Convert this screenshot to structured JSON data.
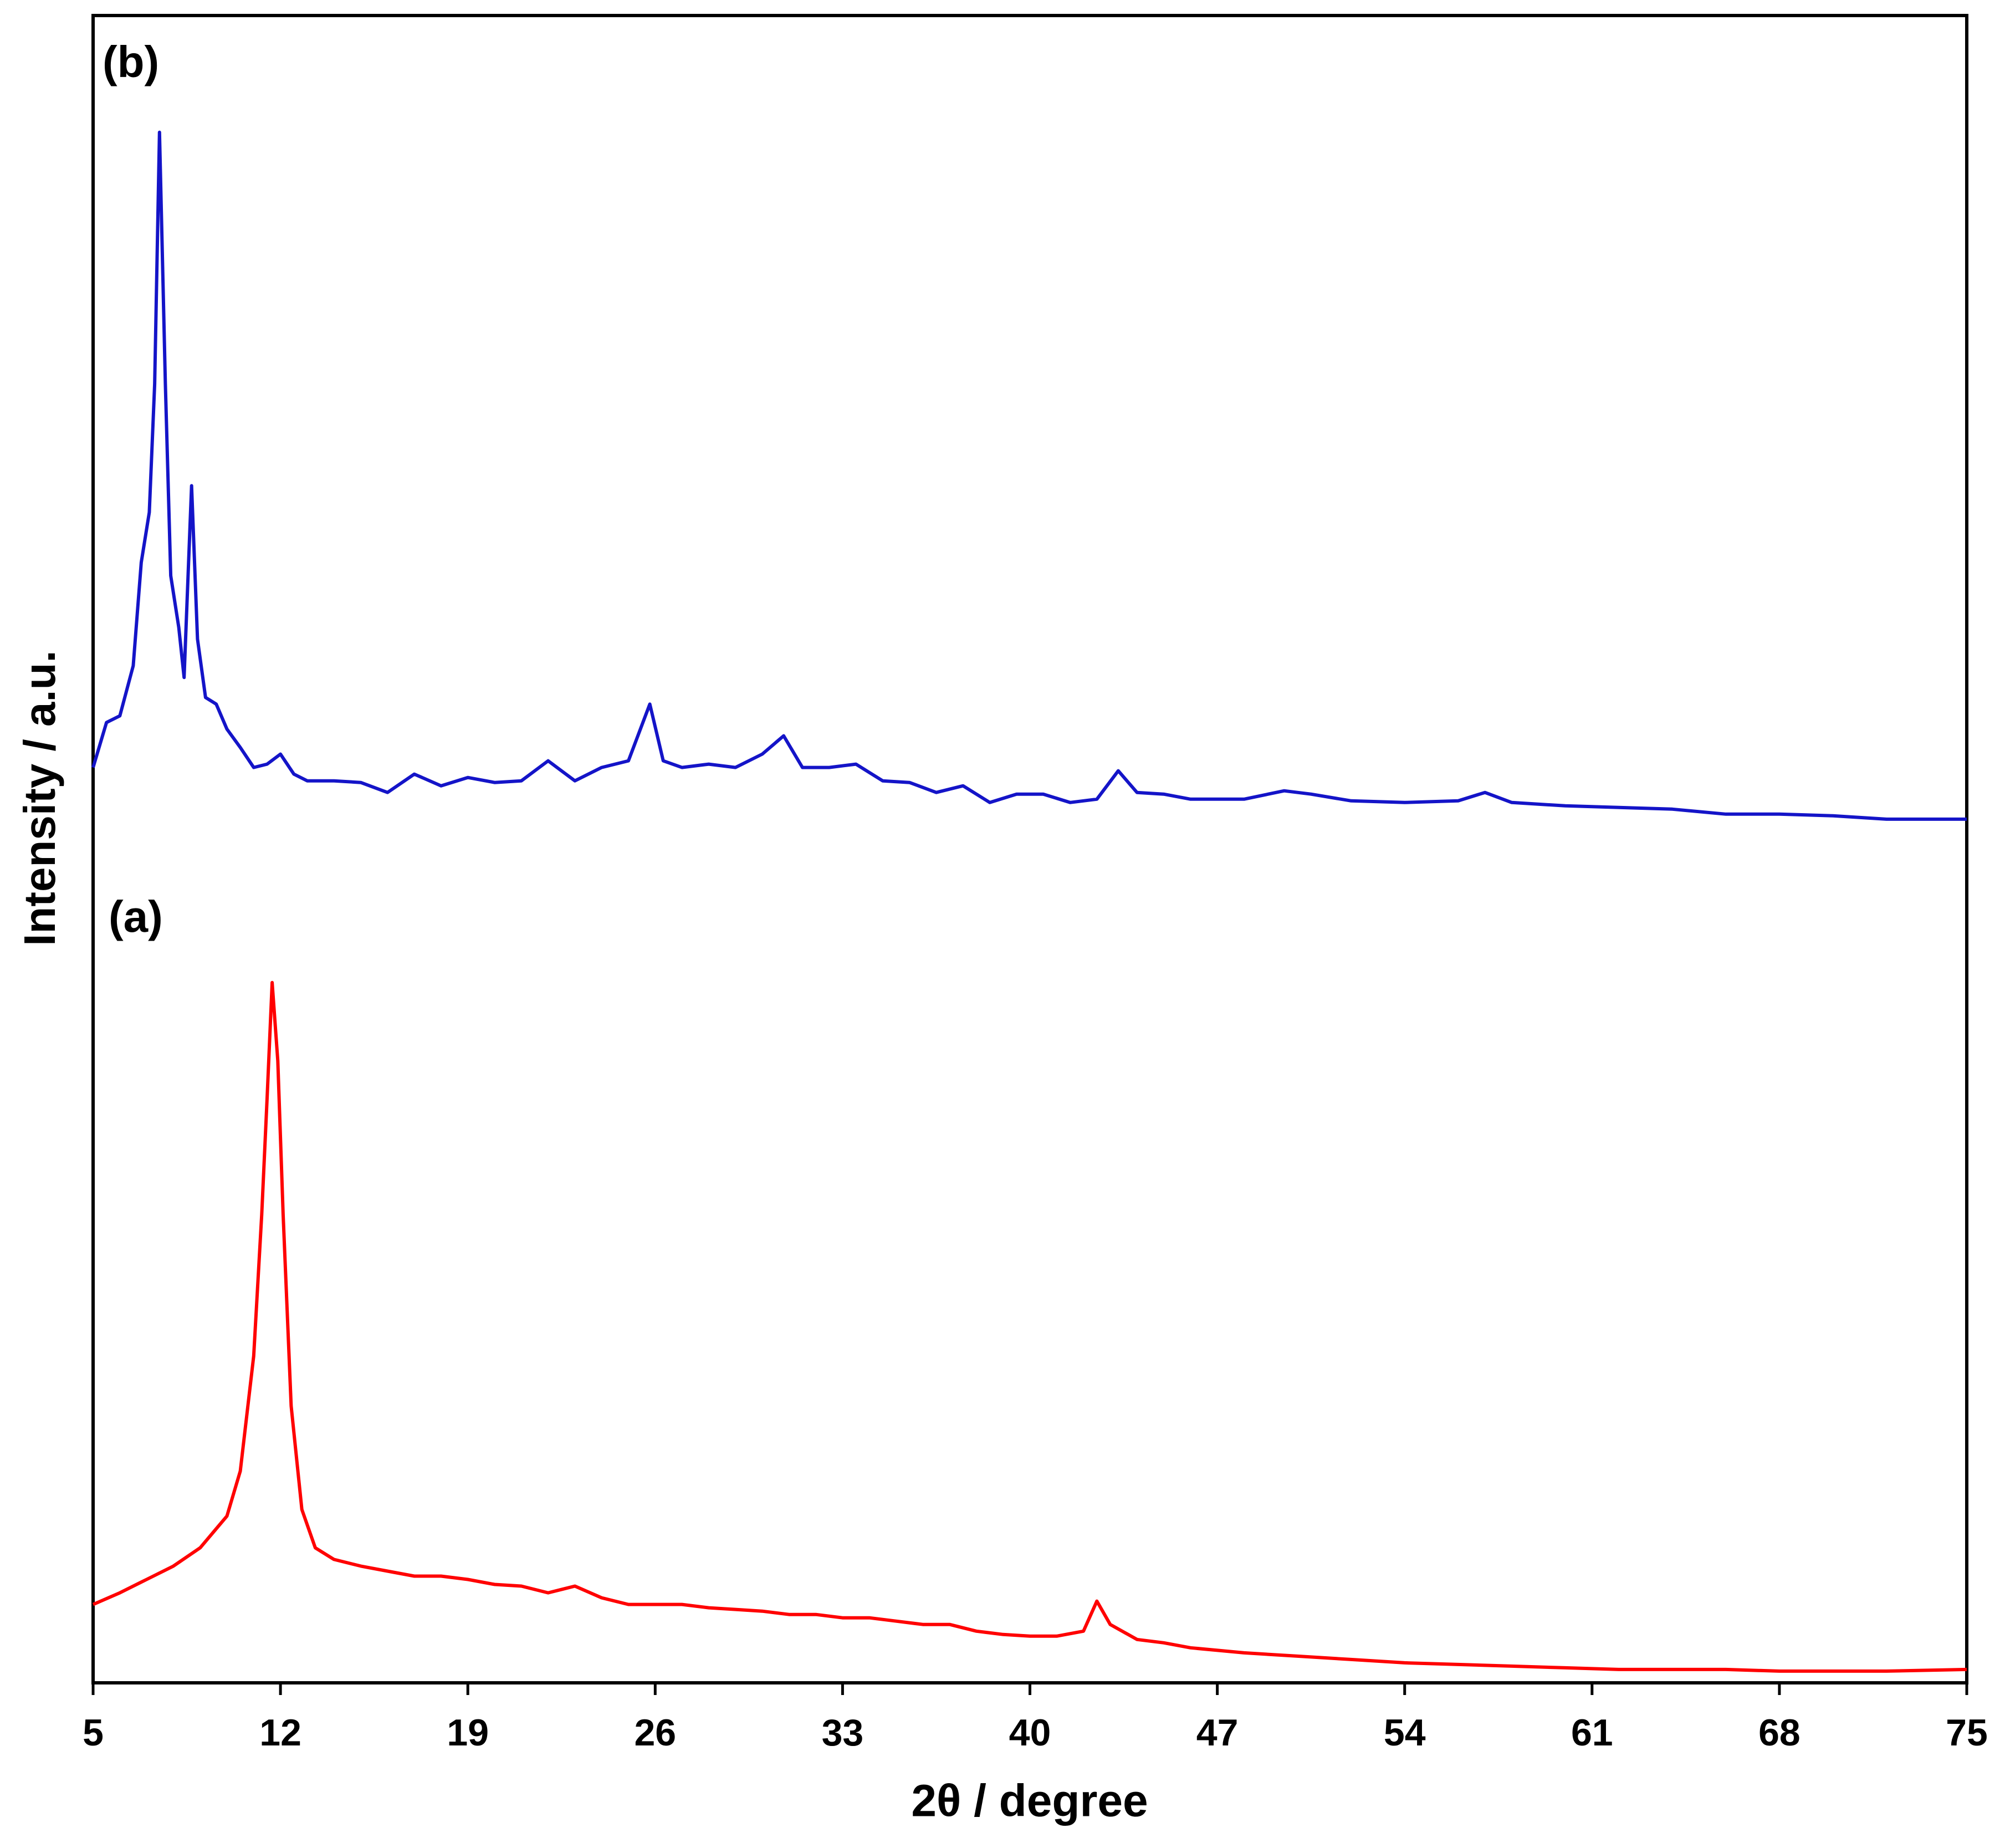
{
  "chart_data": {
    "type": "line",
    "x_label": "2θ / degree",
    "y_label": "Intensity / a.u.",
    "xlim": [
      5,
      75
    ],
    "xticks": [
      5,
      12,
      19,
      26,
      33,
      40,
      47,
      54,
      61,
      68,
      75
    ],
    "ylim": [
      0,
      100
    ],
    "series": [
      {
        "name": "(a)",
        "color": "#ff0000",
        "x": [
          5,
          6,
          7,
          8,
          9,
          10,
          10.5,
          11,
          11.3,
          11.5,
          11.69,
          11.9,
          12.1,
          12.4,
          12.8,
          13.3,
          14,
          15,
          16,
          17,
          18,
          19,
          20,
          21,
          22,
          23,
          24,
          25,
          26,
          27,
          28,
          29,
          30,
          31,
          32,
          33,
          34,
          35,
          36,
          37,
          38,
          39,
          40,
          41,
          42,
          42.5,
          43,
          44,
          45,
          46,
          48,
          50,
          52,
          54,
          56,
          58,
          60,
          62,
          64,
          66,
          68,
          70,
          72,
          75
        ],
        "values": [
          4.7,
          5.4,
          6.2,
          7.0,
          8.1,
          10.0,
          12.7,
          19.6,
          28.1,
          35.0,
          42.0,
          37.3,
          28.1,
          16.6,
          10.4,
          8.1,
          7.4,
          7.0,
          6.7,
          6.4,
          6.4,
          6.2,
          5.9,
          5.8,
          5.4,
          5.8,
          5.1,
          4.7,
          4.7,
          4.7,
          4.5,
          4.4,
          4.3,
          4.1,
          4.1,
          3.9,
          3.9,
          3.7,
          3.5,
          3.5,
          3.1,
          2.9,
          2.8,
          2.8,
          3.1,
          4.9,
          3.5,
          2.6,
          2.4,
          2.1,
          1.8,
          1.6,
          1.4,
          1.2,
          1.1,
          1.0,
          0.9,
          0.8,
          0.8,
          0.8,
          0.7,
          0.7,
          0.7,
          0.8
        ]
      },
      {
        "name": "(b)",
        "color": "#1414c8",
        "x": [
          5,
          5.5,
          6,
          6.5,
          6.8,
          7.1,
          7.3,
          7.48,
          7.7,
          7.9,
          8.2,
          8.4,
          8.68,
          8.9,
          9.2,
          9.6,
          10,
          10.5,
          11,
          11.5,
          12,
          12.5,
          13,
          14,
          15,
          16,
          17,
          18,
          19,
          20,
          21,
          22,
          23,
          24,
          25,
          25.8,
          26.3,
          27,
          28,
          29,
          30,
          30.8,
          31.5,
          32.5,
          33.5,
          34.5,
          35.5,
          36.5,
          37.5,
          38.5,
          39.5,
          40.5,
          41.5,
          42.5,
          43.3,
          44,
          45,
          46,
          47,
          48,
          49.5,
          50.5,
          52,
          54,
          56,
          57,
          58,
          60,
          62,
          64,
          66,
          68,
          70,
          72,
          75
        ],
        "values": [
          54.9,
          57.6,
          58.0,
          61.0,
          67.2,
          70.2,
          77.9,
          93.0,
          77.9,
          66.4,
          63.3,
          60.3,
          71.8,
          62.6,
          59.1,
          58.7,
          57.2,
          56.1,
          54.9,
          55.1,
          55.7,
          54.5,
          54.1,
          54.1,
          54.0,
          53.4,
          54.5,
          53.8,
          54.3,
          54.0,
          54.1,
          55.3,
          54.1,
          54.9,
          55.3,
          58.7,
          55.3,
          54.9,
          55.1,
          54.9,
          55.7,
          56.8,
          54.9,
          54.9,
          55.1,
          54.1,
          54.0,
          53.4,
          53.8,
          52.8,
          53.3,
          53.3,
          52.8,
          53.0,
          54.7,
          53.4,
          53.3,
          53.0,
          53.0,
          53.0,
          53.5,
          53.3,
          52.9,
          52.8,
          52.9,
          53.4,
          52.8,
          52.6,
          52.5,
          52.4,
          52.1,
          52.1,
          52.0,
          51.8,
          51.8
        ]
      }
    ]
  }
}
